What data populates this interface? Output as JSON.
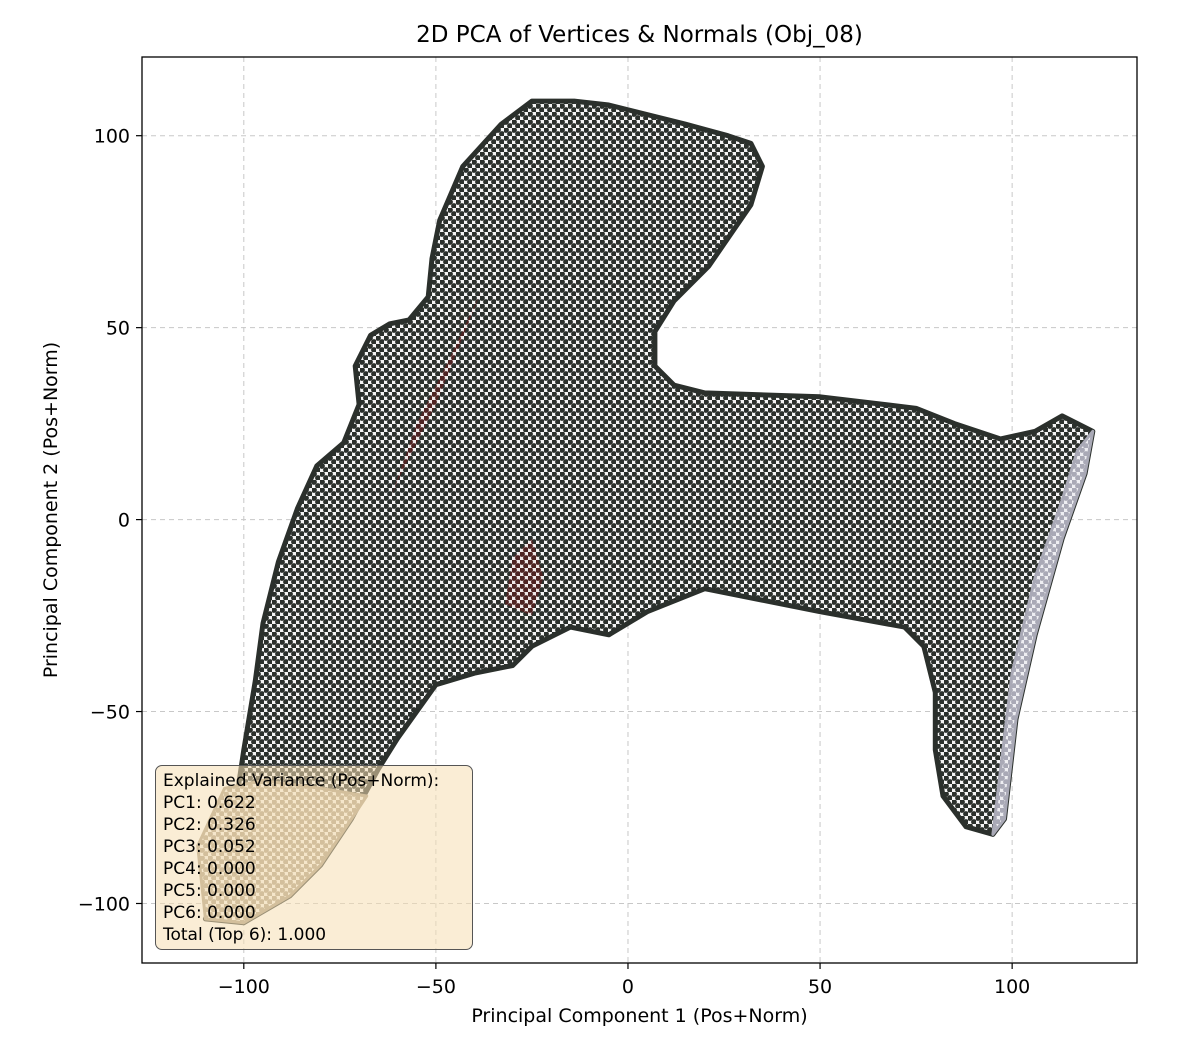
{
  "chart_data": {
    "type": "scatter",
    "title": "2D PCA of Vertices & Normals (Obj_08)",
    "xlabel": "Principal Component 1 (Pos+Norm)",
    "ylabel": "Principal Component 2 (Pos+Norm)",
    "xlim": [
      -126.5,
      132.5
    ],
    "ylim": [
      -115.5,
      120.5
    ],
    "xticks": [
      -100,
      -50,
      0,
      50,
      100
    ],
    "yticks": [
      -100,
      -50,
      0,
      50,
      100
    ],
    "xtick_labels": [
      "−100",
      "−50",
      "0",
      "50",
      "100"
    ],
    "ytick_labels": [
      "−100",
      "−50",
      "0",
      "50",
      "100"
    ],
    "grid": true,
    "point_colors": {
      "body": "#2b302c",
      "lower_left_tail": "#a89a80",
      "right_edge": "#a9a9b6",
      "inner_reddish": "#5a1e1e"
    },
    "regions": [
      {
        "name": "T-shaped point cloud outline",
        "boundary": [
          [
            -108,
            -100
          ],
          [
            -104,
            -87
          ],
          [
            -100,
            -60
          ],
          [
            -97,
            -42
          ],
          [
            -95,
            -27
          ],
          [
            -91,
            -11
          ],
          [
            -86,
            3
          ],
          [
            -81,
            14
          ],
          [
            -74,
            20
          ],
          [
            -70,
            30
          ],
          [
            -71,
            40
          ],
          [
            -67,
            48
          ],
          [
            -62,
            51
          ],
          [
            -57,
            52
          ],
          [
            -52,
            58
          ],
          [
            -51,
            68
          ],
          [
            -49,
            78
          ],
          [
            -43,
            92
          ],
          [
            -33,
            103
          ],
          [
            -25,
            109
          ],
          [
            -14,
            109
          ],
          [
            -5,
            108
          ],
          [
            15,
            103
          ],
          [
            26,
            100
          ],
          [
            32,
            98
          ],
          [
            35,
            92
          ],
          [
            32,
            82
          ],
          [
            21,
            66
          ],
          [
            12,
            57
          ],
          [
            7,
            49
          ],
          [
            7,
            40
          ],
          [
            12,
            35
          ],
          [
            20,
            33
          ],
          [
            50,
            32
          ],
          [
            75,
            29
          ],
          [
            85,
            25
          ],
          [
            97,
            21
          ],
          [
            106,
            23
          ],
          [
            113,
            27
          ],
          [
            121,
            23
          ],
          [
            119,
            12
          ],
          [
            113,
            -5
          ],
          [
            106,
            -30
          ],
          [
            101,
            -52
          ],
          [
            98,
            -78
          ],
          [
            95,
            -82
          ],
          [
            88,
            -80
          ],
          [
            82,
            -72
          ],
          [
            80,
            -60
          ],
          [
            80,
            -45
          ],
          [
            77,
            -33
          ],
          [
            72,
            -28
          ],
          [
            50,
            -24
          ],
          [
            20,
            -18
          ],
          [
            5,
            -24
          ],
          [
            -5,
            -30
          ],
          [
            -15,
            -28
          ],
          [
            -25,
            -33
          ],
          [
            -30,
            -38
          ],
          [
            -40,
            -40
          ],
          [
            -50,
            -43
          ],
          [
            -55,
            -50
          ],
          [
            -60,
            -57
          ],
          [
            -65,
            -65
          ],
          [
            -72,
            -78
          ],
          [
            -80,
            -90
          ],
          [
            -88,
            -98
          ],
          [
            -100,
            -105
          ],
          [
            -110,
            -104
          ]
        ]
      },
      {
        "name": "lower-left light tail",
        "boundary": [
          [
            -110,
            -104
          ],
          [
            -100,
            -105
          ],
          [
            -88,
            -98
          ],
          [
            -80,
            -90
          ],
          [
            -72,
            -78
          ],
          [
            -68,
            -72
          ],
          [
            -80,
            -70
          ],
          [
            -95,
            -68
          ],
          [
            -105,
            -70
          ],
          [
            -112,
            -85
          ]
        ]
      },
      {
        "name": "right light edge",
        "boundary": [
          [
            121,
            23
          ],
          [
            119,
            12
          ],
          [
            113,
            -5
          ],
          [
            106,
            -30
          ],
          [
            101,
            -52
          ],
          [
            98,
            -78
          ],
          [
            95,
            -82
          ],
          [
            97,
            -65
          ],
          [
            100,
            -40
          ],
          [
            106,
            -15
          ],
          [
            113,
            5
          ],
          [
            117,
            18
          ]
        ]
      },
      {
        "name": "reddish inner patch",
        "boundary": [
          [
            -30,
            -10
          ],
          [
            -25,
            -5
          ],
          [
            -22,
            -15
          ],
          [
            -25,
            -25
          ],
          [
            -32,
            -22
          ]
        ]
      },
      {
        "name": "reddish upper streak",
        "boundary": [
          [
            -60,
            10
          ],
          [
            -50,
            30
          ],
          [
            -42,
            50
          ],
          [
            -38,
            60
          ],
          [
            -45,
            45
          ],
          [
            -55,
            25
          ],
          [
            -62,
            5
          ]
        ]
      }
    ]
  },
  "variance_box": {
    "title": "Explained Variance (Pos+Norm):",
    "lines": [
      "PC1: 0.622",
      "PC2: 0.326",
      "PC3: 0.052",
      "PC4: 0.000",
      "PC5: 0.000",
      "PC6: 0.000",
      "Total (Top 6): 1.000"
    ]
  }
}
